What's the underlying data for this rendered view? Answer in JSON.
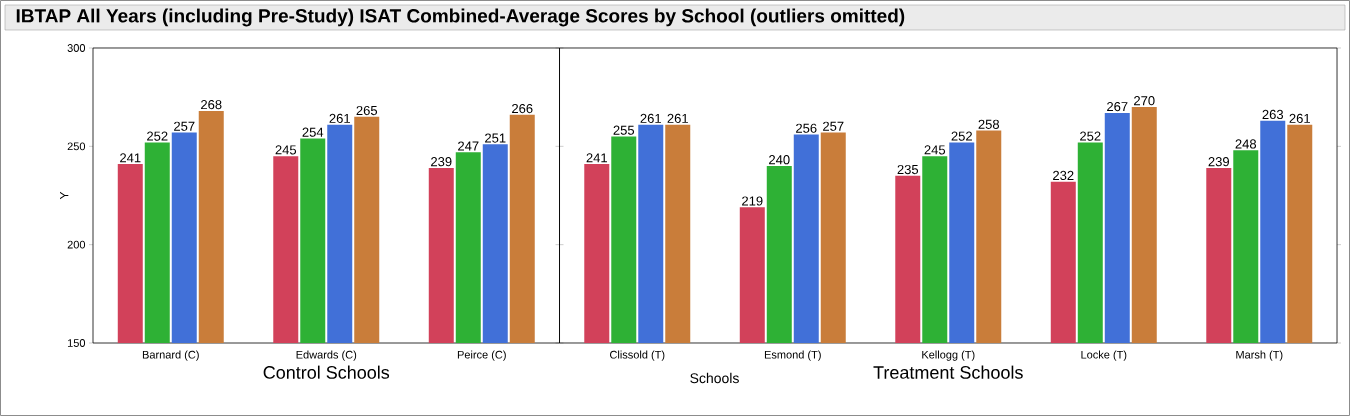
{
  "chart_data": [
    {
      "type": "bar",
      "title": "IBTAP All Years (including Pre-Study) ISAT Combined-Average Scores by School (outliers omitted)",
      "xlabel": "Control Schools",
      "ylabel": "Y",
      "categories": [
        "Barnard (C)",
        "Edwards (C)",
        "Peirce (C)"
      ],
      "series": [
        {
          "color": "#d2415a",
          "values": [
            241,
            245,
            239
          ]
        },
        {
          "color": "#2eb135",
          "values": [
            252,
            254,
            247
          ]
        },
        {
          "color": "#4170d8",
          "values": [
            257,
            261,
            251
          ]
        },
        {
          "color": "#c97d3a",
          "values": [
            268,
            265,
            266
          ]
        }
      ],
      "ylim": [
        150,
        300
      ],
      "yticks": [
        150,
        200,
        250,
        300
      ],
      "data_labels": true
    },
    {
      "type": "bar",
      "xlabel": "Treatment Schools",
      "annotations": [
        "Schools"
      ],
      "categories": [
        "Clissold (T)",
        "Esmond (T)",
        "Kellogg (T)",
        "Locke (T)",
        "Marsh (T)"
      ],
      "series": [
        {
          "color": "#d2415a",
          "values": [
            241,
            219,
            235,
            232,
            239
          ]
        },
        {
          "color": "#2eb135",
          "values": [
            255,
            240,
            245,
            252,
            248
          ]
        },
        {
          "color": "#4170d8",
          "values": [
            261,
            256,
            252,
            267,
            263
          ]
        },
        {
          "color": "#c97d3a",
          "values": [
            261,
            257,
            258,
            270,
            261
          ]
        }
      ],
      "ylim": [
        150,
        300
      ],
      "yticks": [
        150,
        200,
        250,
        300
      ],
      "tick_labels": "x",
      "data_labels": true
    }
  ]
}
